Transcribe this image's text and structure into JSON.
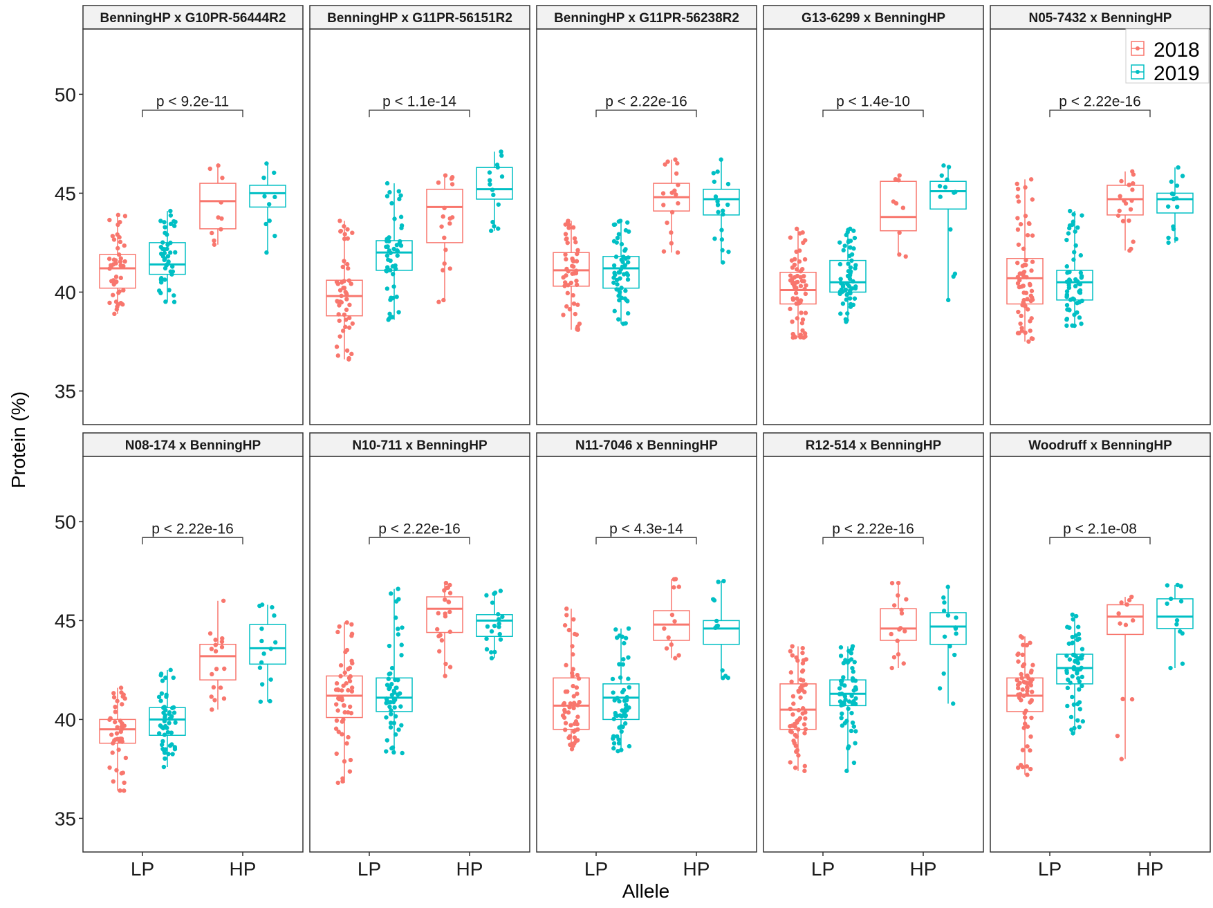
{
  "chart_data": {
    "type": "boxplot",
    "ylabel": "Protein (%)",
    "xlabel": "Allele",
    "categories": [
      "LP",
      "HP"
    ],
    "ylim": [
      33.3,
      53.3
    ],
    "yticks": [
      35,
      40,
      45,
      50
    ],
    "legend": {
      "position": "top-right",
      "entries": [
        {
          "label": "2018",
          "color": "#F8766D"
        },
        {
          "label": "2019",
          "color": "#00BFC4"
        }
      ]
    },
    "colors": {
      "2018": "#F8766D",
      "2019": "#00BFC4"
    },
    "panels": [
      {
        "title": "BenningHP x G10PR-56444R2",
        "pvalue": "p < 9.2e-11",
        "series": [
          {
            "year": "2018",
            "allele": "LP",
            "lower": 38.9,
            "q1": 40.2,
            "median": 41.2,
            "q3": 41.9,
            "upper": 43.9,
            "n": 45
          },
          {
            "year": "2019",
            "allele": "LP",
            "lower": 39.5,
            "q1": 40.9,
            "median": 41.4,
            "q3": 42.5,
            "upper": 44.1,
            "n": 45
          },
          {
            "year": "2018",
            "allele": "HP",
            "lower": 42.4,
            "q1": 43.2,
            "median": 44.6,
            "q3": 45.5,
            "upper": 46.4,
            "n": 10
          },
          {
            "year": "2019",
            "allele": "HP",
            "lower": 42.0,
            "q1": 44.3,
            "median": 45.0,
            "q3": 45.4,
            "upper": 46.5,
            "n": 10
          }
        ]
      },
      {
        "title": "BenningHP x G11PR-56151R2",
        "pvalue": "p < 1.1e-14",
        "series": [
          {
            "year": "2018",
            "allele": "LP",
            "lower": 36.6,
            "q1": 38.8,
            "median": 39.8,
            "q3": 40.6,
            "upper": 43.6,
            "n": 50
          },
          {
            "year": "2019",
            "allele": "LP",
            "lower": 38.6,
            "q1": 41.1,
            "median": 42.0,
            "q3": 42.6,
            "upper": 45.5,
            "n": 50
          },
          {
            "year": "2018",
            "allele": "HP",
            "lower": 39.5,
            "q1": 42.5,
            "median": 44.3,
            "q3": 45.2,
            "upper": 45.9,
            "n": 18
          },
          {
            "year": "2019",
            "allele": "HP",
            "lower": 43.1,
            "q1": 44.7,
            "median": 45.2,
            "q3": 46.3,
            "upper": 47.1,
            "n": 15
          }
        ]
      },
      {
        "title": "BenningHP x G11PR-56238R2",
        "pvalue": "p < 2.22e-16",
        "series": [
          {
            "year": "2018",
            "allele": "LP",
            "lower": 38.1,
            "q1": 40.3,
            "median": 41.1,
            "q3": 42.0,
            "upper": 43.6,
            "n": 50
          },
          {
            "year": "2019",
            "allele": "LP",
            "lower": 38.4,
            "q1": 40.2,
            "median": 41.2,
            "q3": 41.8,
            "upper": 43.6,
            "n": 55
          },
          {
            "year": "2018",
            "allele": "HP",
            "lower": 42.0,
            "q1": 44.1,
            "median": 44.8,
            "q3": 45.5,
            "upper": 46.7,
            "n": 18
          },
          {
            "year": "2019",
            "allele": "HP",
            "lower": 41.5,
            "q1": 43.9,
            "median": 44.7,
            "q3": 45.2,
            "upper": 46.7,
            "n": 18
          }
        ]
      },
      {
        "title": "G13-6299 x BenningHP",
        "pvalue": "p < 1.4e-10",
        "series": [
          {
            "year": "2018",
            "allele": "LP",
            "lower": 37.7,
            "q1": 39.4,
            "median": 40.1,
            "q3": 41.0,
            "upper": 43.2,
            "n": 65
          },
          {
            "year": "2019",
            "allele": "LP",
            "lower": 38.5,
            "q1": 40.0,
            "median": 40.5,
            "q3": 41.6,
            "upper": 43.2,
            "n": 60
          },
          {
            "year": "2018",
            "allele": "HP",
            "lower": 41.8,
            "q1": 43.1,
            "median": 43.8,
            "q3": 45.6,
            "upper": 45.9,
            "n": 9
          },
          {
            "year": "2019",
            "allele": "HP",
            "lower": 39.6,
            "q1": 44.2,
            "median": 45.1,
            "q3": 45.6,
            "upper": 46.4,
            "n": 13
          }
        ]
      },
      {
        "title": "N05-7432 x BenningHP",
        "pvalue": "p < 2.22e-16",
        "series": [
          {
            "year": "2018",
            "allele": "LP",
            "lower": 37.5,
            "q1": 39.4,
            "median": 40.7,
            "q3": 41.7,
            "upper": 45.7,
            "n": 65
          },
          {
            "year": "2019",
            "allele": "LP",
            "lower": 38.3,
            "q1": 39.6,
            "median": 40.5,
            "q3": 41.1,
            "upper": 44.1,
            "n": 60
          },
          {
            "year": "2018",
            "allele": "HP",
            "lower": 42.1,
            "q1": 43.9,
            "median": 44.7,
            "q3": 45.4,
            "upper": 46.1,
            "n": 18
          },
          {
            "year": "2019",
            "allele": "HP",
            "lower": 42.5,
            "q1": 44.0,
            "median": 44.7,
            "q3": 45.0,
            "upper": 46.3,
            "n": 15
          }
        ]
      },
      {
        "title": "N08-174 x BenningHP",
        "pvalue": "p < 2.22e-16",
        "series": [
          {
            "year": "2018",
            "allele": "LP",
            "lower": 36.4,
            "q1": 38.8,
            "median": 39.5,
            "q3": 40.0,
            "upper": 41.6,
            "n": 45
          },
          {
            "year": "2019",
            "allele": "LP",
            "lower": 37.6,
            "q1": 39.2,
            "median": 40.0,
            "q3": 40.6,
            "upper": 42.5,
            "n": 50
          },
          {
            "year": "2018",
            "allele": "HP",
            "lower": 40.5,
            "q1": 42.0,
            "median": 43.2,
            "q3": 43.8,
            "upper": 46.0,
            "n": 18
          },
          {
            "year": "2019",
            "allele": "HP",
            "lower": 40.9,
            "q1": 42.8,
            "median": 43.6,
            "q3": 44.8,
            "upper": 45.8,
            "n": 15
          }
        ]
      },
      {
        "title": "N10-711 x BenningHP",
        "pvalue": "p < 2.22e-16",
        "series": [
          {
            "year": "2018",
            "allele": "LP",
            "lower": 36.8,
            "q1": 40.1,
            "median": 41.2,
            "q3": 42.2,
            "upper": 44.9,
            "n": 55
          },
          {
            "year": "2019",
            "allele": "LP",
            "lower": 38.3,
            "q1": 40.4,
            "median": 41.1,
            "q3": 42.1,
            "upper": 46.6,
            "n": 55
          },
          {
            "year": "2018",
            "allele": "HP",
            "lower": 42.2,
            "q1": 44.4,
            "median": 45.6,
            "q3": 46.2,
            "upper": 46.9,
            "n": 22
          },
          {
            "year": "2019",
            "allele": "HP",
            "lower": 43.1,
            "q1": 44.2,
            "median": 45.0,
            "q3": 45.3,
            "upper": 46.5,
            "n": 20
          }
        ]
      },
      {
        "title": "N11-7046 x BenningHP",
        "pvalue": "p < 4.3e-14",
        "series": [
          {
            "year": "2018",
            "allele": "LP",
            "lower": 38.5,
            "q1": 39.5,
            "median": 40.7,
            "q3": 42.1,
            "upper": 45.6,
            "n": 55
          },
          {
            "year": "2019",
            "allele": "LP",
            "lower": 38.4,
            "q1": 40.0,
            "median": 41.1,
            "q3": 41.8,
            "upper": 44.6,
            "n": 55
          },
          {
            "year": "2018",
            "allele": "HP",
            "lower": 43.1,
            "q1": 44.0,
            "median": 44.8,
            "q3": 45.5,
            "upper": 47.1,
            "n": 12
          },
          {
            "year": "2019",
            "allele": "HP",
            "lower": 42.1,
            "q1": 43.8,
            "median": 44.6,
            "q3": 45.0,
            "upper": 47.0,
            "n": 12
          }
        ]
      },
      {
        "title": "R12-514 x BenningHP",
        "pvalue": "p < 2.22e-16",
        "series": [
          {
            "year": "2018",
            "allele": "LP",
            "lower": 37.4,
            "q1": 39.5,
            "median": 40.5,
            "q3": 41.8,
            "upper": 43.7,
            "n": 60
          },
          {
            "year": "2019",
            "allele": "LP",
            "lower": 37.4,
            "q1": 40.7,
            "median": 41.3,
            "q3": 42.0,
            "upper": 43.7,
            "n": 60
          },
          {
            "year": "2018",
            "allele": "HP",
            "lower": 42.6,
            "q1": 44.0,
            "median": 44.6,
            "q3": 45.6,
            "upper": 46.9,
            "n": 16
          },
          {
            "year": "2019",
            "allele": "HP",
            "lower": 40.8,
            "q1": 43.8,
            "median": 44.7,
            "q3": 45.4,
            "upper": 46.7,
            "n": 15
          }
        ]
      },
      {
        "title": "Woodruff x BenningHP",
        "pvalue": "p < 2.1e-08",
        "series": [
          {
            "year": "2018",
            "allele": "LP",
            "lower": 37.2,
            "q1": 40.4,
            "median": 41.2,
            "q3": 42.1,
            "upper": 44.2,
            "n": 60
          },
          {
            "year": "2019",
            "allele": "LP",
            "lower": 39.3,
            "q1": 41.8,
            "median": 42.6,
            "q3": 43.3,
            "upper": 45.3,
            "n": 60
          },
          {
            "year": "2018",
            "allele": "HP",
            "lower": 38.0,
            "q1": 44.3,
            "median": 45.2,
            "q3": 45.8,
            "upper": 46.2,
            "n": 12
          },
          {
            "year": "2019",
            "allele": "HP",
            "lower": 42.6,
            "q1": 44.6,
            "median": 45.2,
            "q3": 46.1,
            "upper": 46.8,
            "n": 12
          }
        ]
      }
    ]
  }
}
